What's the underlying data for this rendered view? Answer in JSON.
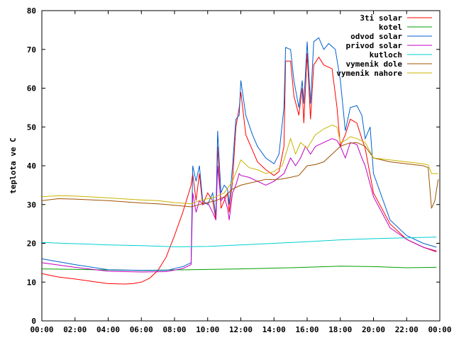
{
  "chart_data": {
    "type": "line",
    "ylabel": "teplota ve C",
    "xlabel": "",
    "title": "",
    "ylim": [
      0,
      80
    ],
    "xlim": [
      0,
      24
    ],
    "x_ticks": [
      "00:00",
      "02:00",
      "04:00",
      "06:00",
      "08:00",
      "10:00",
      "12:00",
      "14:00",
      "16:00",
      "18:00",
      "20:00",
      "22:00",
      "00:00"
    ],
    "y_ticks": [
      "0",
      "10",
      "20",
      "30",
      "40",
      "50",
      "60",
      "70",
      "80"
    ],
    "legend_position": "top-right",
    "grid": false,
    "series": [
      {
        "name": "3ti solar",
        "color": "#ff0000",
        "points": [
          [
            0,
            12.2
          ],
          [
            1,
            11.3
          ],
          [
            2,
            10.8
          ],
          [
            3,
            10.2
          ],
          [
            4,
            9.6
          ],
          [
            5,
            9.5
          ],
          [
            5.5,
            9.6
          ],
          [
            6,
            10.0
          ],
          [
            6.5,
            11.0
          ],
          [
            7,
            13.0
          ],
          [
            7.5,
            16.5
          ],
          [
            8,
            22.0
          ],
          [
            8.5,
            28.0
          ],
          [
            9,
            35.0
          ],
          [
            9.1,
            38.0
          ],
          [
            9.3,
            31.0
          ],
          [
            9.5,
            38.0
          ],
          [
            9.7,
            30.0
          ],
          [
            10,
            33.0
          ],
          [
            10.3,
            31.0
          ],
          [
            10.5,
            26.0
          ],
          [
            10.6,
            45.0
          ],
          [
            10.8,
            29.0
          ],
          [
            11,
            31.0
          ],
          [
            11.2,
            33.0
          ],
          [
            11.3,
            28.0
          ],
          [
            11.5,
            36.0
          ],
          [
            11.7,
            50.0
          ],
          [
            11.9,
            55.0
          ],
          [
            12,
            59.0
          ],
          [
            12.3,
            48.0
          ],
          [
            12.7,
            44.0
          ],
          [
            13,
            41.0
          ],
          [
            13.5,
            39.0
          ],
          [
            14,
            37.5
          ],
          [
            14.3,
            38.5
          ],
          [
            14.6,
            45.0
          ],
          [
            14.7,
            67.0
          ],
          [
            15,
            67.0
          ],
          [
            15.2,
            58.0
          ],
          [
            15.5,
            53.0
          ],
          [
            15.7,
            60.0
          ],
          [
            15.8,
            51.0
          ],
          [
            16,
            69.0
          ],
          [
            16.2,
            52.0
          ],
          [
            16.4,
            66.0
          ],
          [
            16.7,
            68.0
          ],
          [
            17,
            66.0
          ],
          [
            17.5,
            65.0
          ],
          [
            17.8,
            55.0
          ],
          [
            18,
            45.0
          ],
          [
            18.3,
            48.0
          ],
          [
            18.6,
            52.0
          ],
          [
            19,
            51.0
          ],
          [
            19.3,
            47.0
          ],
          [
            19.5,
            44.5
          ],
          [
            20,
            33.0
          ],
          [
            21,
            25.0
          ],
          [
            22,
            21.0
          ],
          [
            23,
            19.0
          ],
          [
            23.8,
            17.8
          ]
        ]
      },
      {
        "name": "kotel",
        "color": "#00a000",
        "points": [
          [
            0,
            13.4
          ],
          [
            3,
            13.2
          ],
          [
            6,
            13.0
          ],
          [
            9,
            13.2
          ],
          [
            12,
            13.4
          ],
          [
            15,
            13.7
          ],
          [
            18,
            14.1
          ],
          [
            20,
            14.0
          ],
          [
            22,
            13.7
          ],
          [
            23.8,
            13.8
          ]
        ]
      },
      {
        "name": "odvod solar",
        "color": "#0060d0",
        "points": [
          [
            0,
            16.0
          ],
          [
            2,
            14.5
          ],
          [
            4,
            13.2
          ],
          [
            6,
            13.0
          ],
          [
            7.5,
            13.0
          ],
          [
            8.5,
            14.0
          ],
          [
            9,
            15.0
          ],
          [
            9.1,
            40.0
          ],
          [
            9.3,
            36.0
          ],
          [
            9.5,
            40.0
          ],
          [
            9.7,
            31.0
          ],
          [
            10,
            30.0
          ],
          [
            10.3,
            33.0
          ],
          [
            10.5,
            27.0
          ],
          [
            10.6,
            49.0
          ],
          [
            10.8,
            33.0
          ],
          [
            11,
            35.0
          ],
          [
            11.2,
            34.0
          ],
          [
            11.3,
            30.0
          ],
          [
            11.5,
            40.0
          ],
          [
            11.7,
            52.0
          ],
          [
            11.9,
            53.0
          ],
          [
            12,
            62.0
          ],
          [
            12.3,
            53.0
          ],
          [
            12.7,
            48.0
          ],
          [
            13,
            45.0
          ],
          [
            13.5,
            42.0
          ],
          [
            14,
            40.5
          ],
          [
            14.3,
            43.0
          ],
          [
            14.6,
            55.0
          ],
          [
            14.7,
            70.5
          ],
          [
            15,
            70.0
          ],
          [
            15.2,
            62.0
          ],
          [
            15.5,
            55.0
          ],
          [
            15.7,
            62.0
          ],
          [
            15.8,
            56.0
          ],
          [
            16,
            72.0
          ],
          [
            16.2,
            56.0
          ],
          [
            16.4,
            72.0
          ],
          [
            16.7,
            73.0
          ],
          [
            17,
            70.0
          ],
          [
            17.3,
            71.5
          ],
          [
            17.7,
            70.0
          ],
          [
            18,
            62.0
          ],
          [
            18.3,
            49.0
          ],
          [
            18.6,
            55.0
          ],
          [
            19,
            55.5
          ],
          [
            19.3,
            53.0
          ],
          [
            19.5,
            47.0
          ],
          [
            19.8,
            50.0
          ],
          [
            20,
            38.0
          ],
          [
            21,
            26.0
          ],
          [
            22,
            22.0
          ],
          [
            23,
            20.0
          ],
          [
            23.8,
            19.0
          ]
        ]
      },
      {
        "name": "privod solar",
        "color": "#c000c0",
        "points": [
          [
            0,
            15.0
          ],
          [
            2,
            13.8
          ],
          [
            4,
            12.8
          ],
          [
            6,
            12.6
          ],
          [
            7.5,
            12.7
          ],
          [
            8.5,
            13.5
          ],
          [
            9,
            14.5
          ],
          [
            9.1,
            33.0
          ],
          [
            9.3,
            28.0
          ],
          [
            9.5,
            31.0
          ],
          [
            9.7,
            30.0
          ],
          [
            10,
            30.5
          ],
          [
            10.3,
            28.0
          ],
          [
            10.5,
            26.0
          ],
          [
            10.6,
            40.0
          ],
          [
            10.8,
            31.0
          ],
          [
            11,
            32.0
          ],
          [
            11.2,
            29.0
          ],
          [
            11.3,
            26.0
          ],
          [
            11.5,
            33.0
          ],
          [
            11.7,
            35.0
          ],
          [
            11.9,
            38.0
          ],
          [
            12,
            37.5
          ],
          [
            12.5,
            37.0
          ],
          [
            13,
            36.0
          ],
          [
            13.5,
            35.0
          ],
          [
            14,
            36.0
          ],
          [
            14.3,
            37.0
          ],
          [
            14.6,
            38.0
          ],
          [
            15,
            42.0
          ],
          [
            15.3,
            40.0
          ],
          [
            15.6,
            42.0
          ],
          [
            15.9,
            45.0
          ],
          [
            16.2,
            43.0
          ],
          [
            16.5,
            45.0
          ],
          [
            17,
            46.0
          ],
          [
            17.5,
            47.0
          ],
          [
            17.8,
            46.5
          ],
          [
            18,
            45.0
          ],
          [
            18.3,
            42.0
          ],
          [
            18.6,
            46.0
          ],
          [
            19,
            45.5
          ],
          [
            19.3,
            42.0
          ],
          [
            19.5,
            40.0
          ],
          [
            20,
            32.0
          ],
          [
            21,
            24.0
          ],
          [
            22,
            21.0
          ],
          [
            23,
            19.0
          ],
          [
            23.8,
            18.0
          ]
        ]
      },
      {
        "name": "kutloch",
        "color": "#00d0d0",
        "points": [
          [
            0,
            20.2
          ],
          [
            2,
            19.9
          ],
          [
            4,
            19.6
          ],
          [
            6,
            19.4
          ],
          [
            8,
            19.1
          ],
          [
            10,
            19.2
          ],
          [
            12,
            19.6
          ],
          [
            14,
            20.0
          ],
          [
            16,
            20.4
          ],
          [
            18,
            20.9
          ],
          [
            20,
            21.2
          ],
          [
            22,
            21.4
          ],
          [
            23.8,
            21.6
          ]
        ]
      },
      {
        "name": "vymenik dole",
        "color": "#a05000",
        "points": [
          [
            0,
            31.0
          ],
          [
            1,
            31.5
          ],
          [
            2,
            31.4
          ],
          [
            4,
            31.0
          ],
          [
            6,
            30.4
          ],
          [
            7,
            30.2
          ],
          [
            8,
            29.8
          ],
          [
            9,
            29.4
          ],
          [
            9.5,
            30.0
          ],
          [
            10,
            30.5
          ],
          [
            10.5,
            31.0
          ],
          [
            11,
            32.0
          ],
          [
            11.5,
            34.0
          ],
          [
            12,
            35.0
          ],
          [
            12.5,
            35.5
          ],
          [
            13,
            36.0
          ],
          [
            13.5,
            36.5
          ],
          [
            14,
            36.4
          ],
          [
            14.5,
            36.6
          ],
          [
            15,
            37.0
          ],
          [
            15.5,
            37.5
          ],
          [
            16,
            40.0
          ],
          [
            16.5,
            40.3
          ],
          [
            17,
            41.0
          ],
          [
            17.5,
            43.0
          ],
          [
            18,
            45.0
          ],
          [
            18.5,
            45.8
          ],
          [
            19,
            46.0
          ],
          [
            19.5,
            45.0
          ],
          [
            20,
            42.0
          ],
          [
            21,
            41.0
          ],
          [
            22,
            40.5
          ],
          [
            23,
            40.0
          ],
          [
            23.3,
            39.5
          ],
          [
            23.5,
            29.0
          ],
          [
            23.7,
            31.0
          ],
          [
            23.9,
            36.5
          ]
        ]
      },
      {
        "name": "vymenik nahore",
        "color": "#c8b400",
        "points": [
          [
            0,
            32.0
          ],
          [
            1,
            32.3
          ],
          [
            2,
            32.2
          ],
          [
            4,
            31.7
          ],
          [
            6,
            31.2
          ],
          [
            7,
            31.0
          ],
          [
            8,
            30.5
          ],
          [
            9,
            30.2
          ],
          [
            9.5,
            31.0
          ],
          [
            10,
            31.5
          ],
          [
            10.5,
            32.0
          ],
          [
            11,
            33.0
          ],
          [
            11.5,
            36.0
          ],
          [
            12,
            41.5
          ],
          [
            12.5,
            39.5
          ],
          [
            13,
            39.0
          ],
          [
            13.5,
            38.0
          ],
          [
            14,
            38.5
          ],
          [
            14.5,
            40.0
          ],
          [
            15,
            47.0
          ],
          [
            15.3,
            43.0
          ],
          [
            15.6,
            46.0
          ],
          [
            16,
            44.5
          ],
          [
            16.5,
            48.0
          ],
          [
            17,
            49.5
          ],
          [
            17.5,
            50.5
          ],
          [
            17.8,
            50.0
          ],
          [
            18,
            46.0
          ],
          [
            18.3,
            46.5
          ],
          [
            18.6,
            47.5
          ],
          [
            19,
            47.0
          ],
          [
            19.5,
            46.0
          ],
          [
            20,
            42.0
          ],
          [
            21,
            41.5
          ],
          [
            22,
            41.0
          ],
          [
            23,
            40.5
          ],
          [
            23.3,
            40.2
          ],
          [
            23.5,
            38.0
          ],
          [
            23.9,
            38.0
          ]
        ]
      }
    ]
  }
}
